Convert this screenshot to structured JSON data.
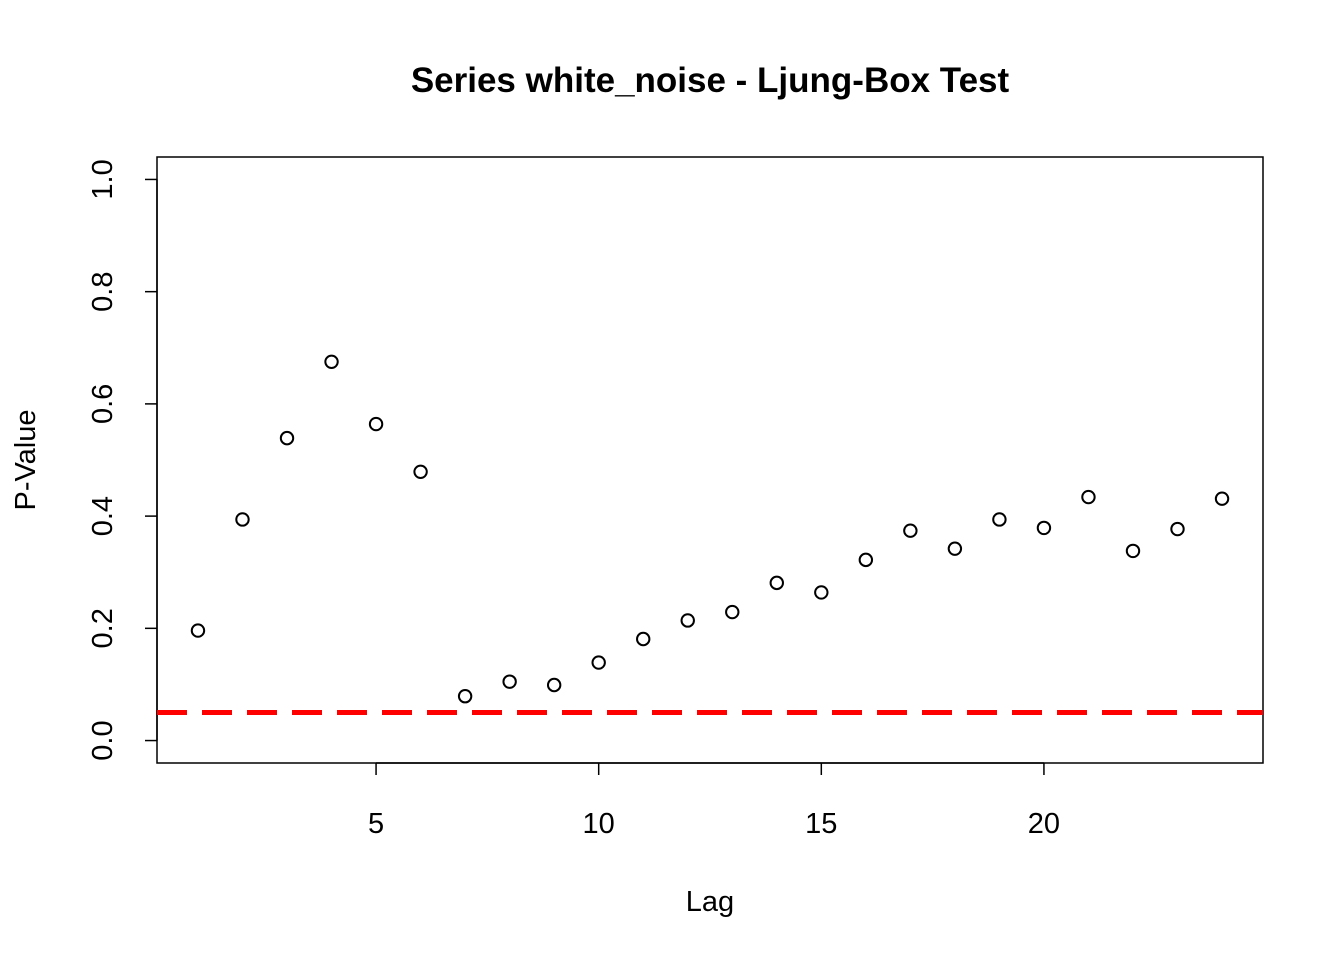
{
  "chart_data": {
    "type": "scatter",
    "title": "Series white_noise - Ljung-Box Test",
    "xlabel": "Lag",
    "ylabel": "P-Value",
    "xlim": [
      0.08,
      24.92
    ],
    "ylim": [
      -0.04,
      1.04
    ],
    "x_ticks": [
      5,
      10,
      15,
      20
    ],
    "y_ticks": [
      0.0,
      0.2,
      0.4,
      0.6,
      0.8,
      1.0
    ],
    "y_tick_labels": [
      "0.0",
      "0.2",
      "0.4",
      "0.6",
      "0.8",
      "1.0"
    ],
    "grid": false,
    "marker": "open-circle",
    "x": [
      1,
      2,
      3,
      4,
      5,
      6,
      7,
      8,
      9,
      10,
      11,
      12,
      13,
      14,
      15,
      16,
      17,
      18,
      19,
      20,
      21,
      22,
      23,
      24
    ],
    "y": [
      0.196,
      0.394,
      0.539,
      0.675,
      0.564,
      0.479,
      0.079,
      0.105,
      0.099,
      0.139,
      0.181,
      0.214,
      0.229,
      0.281,
      0.264,
      0.322,
      0.374,
      0.342,
      0.394,
      0.379,
      0.434,
      0.338,
      0.377,
      0.431
    ],
    "reference_line": {
      "y": 0.05,
      "color": "#ff0000",
      "style": "dashed"
    }
  }
}
